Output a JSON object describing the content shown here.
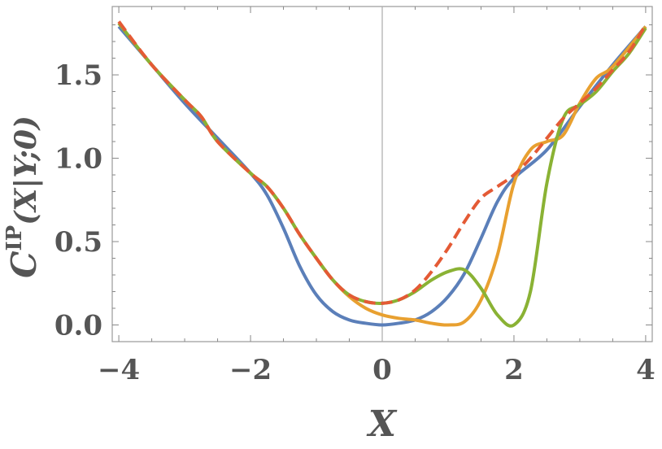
{
  "chart_data": {
    "type": "line",
    "title": "",
    "xlabel": "X",
    "ylabel": {
      "main": "C",
      "superscript": "IP",
      "argument": "(X|Y;0)"
    },
    "xlim": [
      -4.1,
      4.1
    ],
    "ylim": [
      -0.1,
      1.91
    ],
    "x_ticks": [
      -4,
      -2,
      0,
      2,
      4
    ],
    "x_tick_labels": [
      "−4",
      "−2",
      "0",
      "2",
      "4"
    ],
    "y_ticks": [
      0.0,
      0.5,
      1.0,
      1.5
    ],
    "y_tick_labels": [
      "0.0",
      "0.5",
      "1.0",
      "1.5"
    ],
    "grid": false,
    "legend": "none",
    "series": [
      {
        "color": "#5b7fb9",
        "dash": "solid",
        "x": [
          -4,
          -3.5,
          -3,
          -2.5,
          -2,
          -1.75,
          -1.5,
          -1.25,
          -1,
          -0.75,
          -0.5,
          -0.25,
          0,
          0.25,
          0.5,
          0.75,
          1,
          1.25,
          1.5,
          1.75,
          2,
          2.5,
          3,
          3.5,
          4
        ],
        "y": [
          1.79,
          1.56,
          1.33,
          1.12,
          0.91,
          0.78,
          0.58,
          0.35,
          0.18,
          0.08,
          0.03,
          0.01,
          0.0,
          0.01,
          0.03,
          0.08,
          0.17,
          0.31,
          0.52,
          0.74,
          0.88,
          1.05,
          1.31,
          1.56,
          1.79
        ]
      },
      {
        "color": "#e8a030",
        "dash": "solid",
        "x": [
          -4,
          -3.5,
          -3,
          -2.75,
          -2.5,
          -2,
          -1.75,
          -1.5,
          -1.25,
          -1,
          -0.75,
          -0.5,
          -0.25,
          0,
          0.25,
          0.5,
          0.75,
          1,
          1.25,
          1.5,
          1.75,
          2,
          2.25,
          2.5,
          2.75,
          3,
          3.25,
          3.5,
          4
        ],
        "y": [
          1.81,
          1.56,
          1.35,
          1.25,
          1.1,
          0.91,
          0.83,
          0.7,
          0.54,
          0.4,
          0.27,
          0.17,
          0.1,
          0.06,
          0.04,
          0.03,
          0.01,
          0.0,
          0.02,
          0.15,
          0.42,
          0.85,
          1.05,
          1.1,
          1.14,
          1.33,
          1.48,
          1.55,
          1.79
        ]
      },
      {
        "color": "#8ab234",
        "dash": "solid",
        "x": [
          -4,
          -3.5,
          -3,
          -2.75,
          -2.5,
          -2,
          -1.75,
          -1.5,
          -1.25,
          -1,
          -0.75,
          -0.5,
          -0.25,
          0,
          0.25,
          0.5,
          0.75,
          1,
          1.25,
          1.5,
          1.75,
          2,
          2.25,
          2.5,
          2.75,
          3,
          3.25,
          3.5,
          3.75,
          4
        ],
        "y": [
          1.81,
          1.56,
          1.35,
          1.25,
          1.1,
          0.91,
          0.83,
          0.7,
          0.54,
          0.4,
          0.27,
          0.18,
          0.14,
          0.13,
          0.15,
          0.2,
          0.27,
          0.32,
          0.33,
          0.22,
          0.06,
          0.0,
          0.2,
          0.85,
          1.24,
          1.32,
          1.4,
          1.52,
          1.63,
          1.78
        ]
      },
      {
        "color": "#e45a35",
        "dash": "dashed",
        "x": [
          -4,
          -3.5,
          -3,
          -2.75,
          -2.5,
          -2,
          -1.75,
          -1.5,
          -1.25,
          -1,
          -0.75,
          -0.5,
          -0.25,
          0,
          0.25,
          0.5,
          0.75,
          1,
          1.25,
          1.5,
          1.75,
          2,
          2.25,
          2.5,
          2.75,
          3,
          3.25,
          3.5,
          3.75,
          4
        ],
        "y": [
          1.82,
          1.56,
          1.35,
          1.25,
          1.1,
          0.91,
          0.83,
          0.7,
          0.54,
          0.4,
          0.27,
          0.18,
          0.14,
          0.13,
          0.15,
          0.21,
          0.32,
          0.46,
          0.62,
          0.76,
          0.83,
          0.9,
          1.0,
          1.12,
          1.24,
          1.33,
          1.42,
          1.53,
          1.64,
          1.8
        ]
      }
    ]
  }
}
